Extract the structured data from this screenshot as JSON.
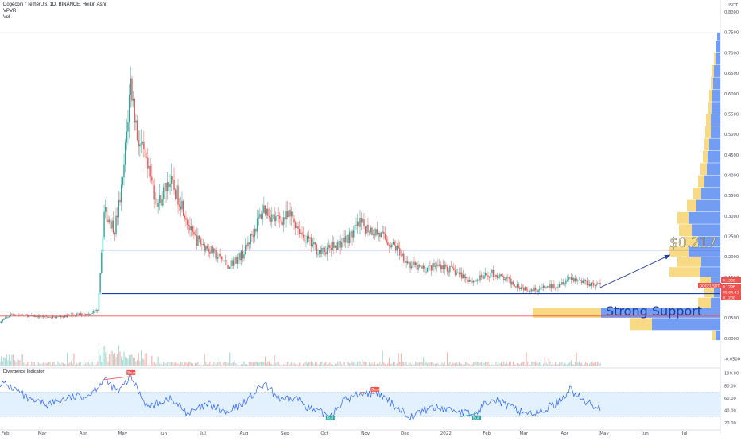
{
  "header": {
    "symbol_line": "Dogecoin / TetherUS, 1D, BINANCE, Heikin Ashi",
    "vpvr_label": "VPVR",
    "vol_label": "Vol",
    "currency": "USDT"
  },
  "axes": {
    "price_ticks": [
      "0.8000",
      "0.7500",
      "0.7000",
      "0.6500",
      "0.6000",
      "0.5500",
      "0.5000",
      "0.4500",
      "0.4000",
      "0.3500",
      "0.3000",
      "0.2500",
      "0.2000",
      "0.1500",
      "0.1000",
      "0.0500",
      "0.0000",
      "-0.0500"
    ],
    "osc_ticks": [
      "100.00",
      "80.00",
      "60.00",
      "40.00",
      "20.00"
    ],
    "months": [
      "Feb",
      "Mar",
      "Apr",
      "May",
      "Jun",
      "Jul",
      "Aug",
      "Sep",
      "Oct",
      "Nov",
      "Dec",
      "2022",
      "Feb",
      "Mar",
      "Apr",
      "May",
      "Jun",
      "Jul"
    ]
  },
  "price_badges": {
    "ticker": "DOGEUSDT",
    "high": "0.1300",
    "last": "0.1296",
    "countdown": "09:04:43",
    "low": "0.1200"
  },
  "annotations": {
    "resistance_label": "$0.217",
    "support_label": "Strong Support",
    "resistance_level": 0.217,
    "support_level": 0.11,
    "red_level": 0.055,
    "arrow_from": {
      "date": "2022-04-28",
      "price": 0.125
    },
    "arrow_to": {
      "date": "2022-06-20",
      "price": 0.205
    }
  },
  "oscillator": {
    "title": "Divergence Indicator",
    "bear_label": "Bear",
    "bull_label": "Bull"
  },
  "colors": {
    "up": "#26a69a",
    "down": "#ef5350",
    "blue_line": "#1e3fa5",
    "red_line": "#ef5350",
    "vpvr_blue": "#5b8cf0",
    "vpvr_yellow": "#f8d46e",
    "osc_line": "#2962ff"
  },
  "chart_data": {
    "type": "candlestick",
    "title": "Dogecoin / TetherUS, 1D, BINANCE, Heikin Ashi",
    "ylim": [
      -0.07,
      0.82
    ],
    "x_range": [
      "2021-01-28",
      "2022-07-28"
    ],
    "price_path": [
      {
        "date": "2021-01-28",
        "price": 0.04
      },
      {
        "date": "2021-02-06",
        "price": 0.06
      },
      {
        "date": "2021-02-20",
        "price": 0.055
      },
      {
        "date": "2021-03-10",
        "price": 0.052
      },
      {
        "date": "2021-03-25",
        "price": 0.058
      },
      {
        "date": "2021-04-05",
        "price": 0.06
      },
      {
        "date": "2021-04-12",
        "price": 0.07
      },
      {
        "date": "2021-04-17",
        "price": 0.31
      },
      {
        "date": "2021-04-25",
        "price": 0.27
      },
      {
        "date": "2021-05-01",
        "price": 0.38
      },
      {
        "date": "2021-05-07",
        "price": 0.63
      },
      {
        "date": "2021-05-12",
        "price": 0.5
      },
      {
        "date": "2021-05-19",
        "price": 0.42
      },
      {
        "date": "2021-05-28",
        "price": 0.33
      },
      {
        "date": "2021-06-05",
        "price": 0.39
      },
      {
        "date": "2021-06-15",
        "price": 0.33
      },
      {
        "date": "2021-06-23",
        "price": 0.25
      },
      {
        "date": "2021-07-05",
        "price": 0.22
      },
      {
        "date": "2021-07-20",
        "price": 0.18
      },
      {
        "date": "2021-08-01",
        "price": 0.21
      },
      {
        "date": "2021-08-16",
        "price": 0.32
      },
      {
        "date": "2021-08-25",
        "price": 0.29
      },
      {
        "date": "2021-09-06",
        "price": 0.3
      },
      {
        "date": "2021-09-15",
        "price": 0.25
      },
      {
        "date": "2021-09-28",
        "price": 0.21
      },
      {
        "date": "2021-10-10",
        "price": 0.23
      },
      {
        "date": "2021-10-20",
        "price": 0.25
      },
      {
        "date": "2021-10-28",
        "price": 0.28
      },
      {
        "date": "2021-11-10",
        "price": 0.26
      },
      {
        "date": "2021-11-25",
        "price": 0.22
      },
      {
        "date": "2021-12-05",
        "price": 0.18
      },
      {
        "date": "2021-12-15",
        "price": 0.17
      },
      {
        "date": "2021-12-28",
        "price": 0.18
      },
      {
        "date": "2022-01-10",
        "price": 0.16
      },
      {
        "date": "2022-01-22",
        "price": 0.14
      },
      {
        "date": "2022-02-05",
        "price": 0.16
      },
      {
        "date": "2022-02-15",
        "price": 0.145
      },
      {
        "date": "2022-02-28",
        "price": 0.125
      },
      {
        "date": "2022-03-12",
        "price": 0.12
      },
      {
        "date": "2022-03-25",
        "price": 0.13
      },
      {
        "date": "2022-04-05",
        "price": 0.15
      },
      {
        "date": "2022-04-15",
        "price": 0.14
      },
      {
        "date": "2022-04-28",
        "price": 0.13
      }
    ],
    "oscillator": {
      "name": "Divergence Indicator",
      "ylim": [
        10,
        105
      ],
      "band": [
        30,
        70
      ],
      "series": [
        {
          "date": "2021-01-28",
          "value": 85
        },
        {
          "date": "2021-02-08",
          "value": 75
        },
        {
          "date": "2021-02-20",
          "value": 55
        },
        {
          "date": "2021-03-05",
          "value": 50
        },
        {
          "date": "2021-03-20",
          "value": 60
        },
        {
          "date": "2021-04-05",
          "value": 65
        },
        {
          "date": "2021-04-17",
          "value": 90
        },
        {
          "date": "2021-04-28",
          "value": 70
        },
        {
          "date": "2021-05-07",
          "value": 95
        },
        {
          "date": "2021-05-20",
          "value": 45
        },
        {
          "date": "2021-06-05",
          "value": 60
        },
        {
          "date": "2021-06-20",
          "value": 35
        },
        {
          "date": "2021-07-05",
          "value": 50
        },
        {
          "date": "2021-07-20",
          "value": 35
        },
        {
          "date": "2021-08-05",
          "value": 60
        },
        {
          "date": "2021-08-16",
          "value": 82
        },
        {
          "date": "2021-08-30",
          "value": 55
        },
        {
          "date": "2021-09-10",
          "value": 60
        },
        {
          "date": "2021-09-22",
          "value": 40
        },
        {
          "date": "2021-10-05",
          "value": 32
        },
        {
          "date": "2021-10-15",
          "value": 55
        },
        {
          "date": "2021-10-28",
          "value": 68
        },
        {
          "date": "2021-11-10",
          "value": 68
        },
        {
          "date": "2021-11-25",
          "value": 45
        },
        {
          "date": "2021-12-06",
          "value": 30
        },
        {
          "date": "2021-12-20",
          "value": 45
        },
        {
          "date": "2022-01-05",
          "value": 42
        },
        {
          "date": "2022-01-22",
          "value": 32
        },
        {
          "date": "2022-02-05",
          "value": 62
        },
        {
          "date": "2022-02-18",
          "value": 45
        },
        {
          "date": "2022-03-01",
          "value": 38
        },
        {
          "date": "2022-03-12",
          "value": 35
        },
        {
          "date": "2022-03-28",
          "value": 55
        },
        {
          "date": "2022-04-05",
          "value": 75
        },
        {
          "date": "2022-04-15",
          "value": 55
        },
        {
          "date": "2022-04-28",
          "value": 45
        }
      ],
      "signals": [
        {
          "type": "bear",
          "date": "2021-05-07"
        },
        {
          "type": "bear",
          "date": "2021-11-08"
        },
        {
          "type": "bull",
          "date": "2021-10-05"
        },
        {
          "type": "bull",
          "date": "2022-01-24"
        }
      ]
    }
  }
}
